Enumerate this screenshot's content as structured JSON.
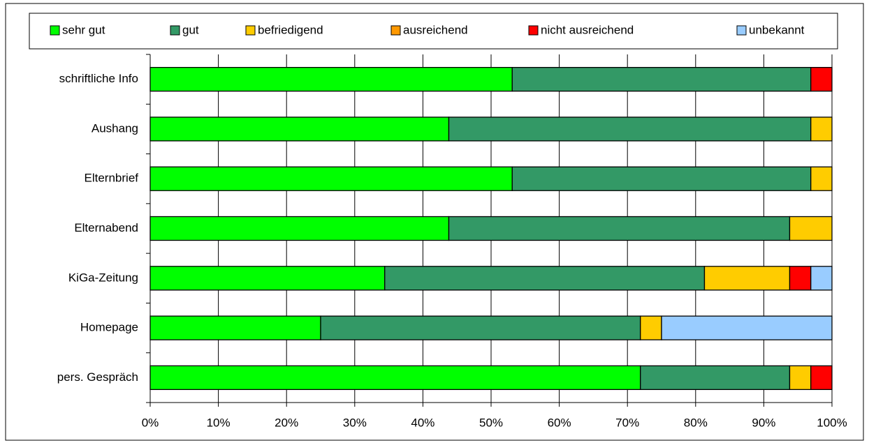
{
  "chart_data": {
    "type": "stacked_barh",
    "categories": [
      "schriftliche Info",
      "Aushang",
      "Elternbrief",
      "Elternabend",
      "KiGa-Zeitung",
      "Homepage",
      "pers. Gespräch"
    ],
    "series": [
      {
        "name": "sehr gut",
        "color": "#00ff00",
        "values": [
          53.1,
          43.8,
          53.1,
          43.8,
          34.4,
          25.0,
          71.9
        ]
      },
      {
        "name": "gut",
        "color": "#339966",
        "values": [
          43.8,
          53.1,
          43.8,
          50.0,
          46.9,
          46.9,
          21.9
        ]
      },
      {
        "name": "befriedigend",
        "color": "#ffcc00",
        "values": [
          0,
          3.1,
          3.1,
          6.2,
          12.5,
          3.1,
          3.1
        ]
      },
      {
        "name": "ausreichend",
        "color": "#ff9900",
        "values": [
          0,
          0,
          0,
          0,
          0,
          0,
          0
        ]
      },
      {
        "name": "nicht ausreichend",
        "color": "#ff0000",
        "values": [
          3.1,
          0,
          0,
          0,
          3.1,
          0,
          3.1
        ]
      },
      {
        "name": "unbekannt",
        "color": "#99ccff",
        "values": [
          0,
          0,
          0,
          0,
          3.1,
          25.0,
          0
        ]
      }
    ],
    "xlim": [
      0,
      100
    ],
    "xticks": [
      {
        "value": 0,
        "label": "0%"
      },
      {
        "value": 10,
        "label": "10%"
      },
      {
        "value": 20,
        "label": "20%"
      },
      {
        "value": 30,
        "label": "30%"
      },
      {
        "value": 40,
        "label": "40%"
      },
      {
        "value": 50,
        "label": "50%"
      },
      {
        "value": 60,
        "label": "60%"
      },
      {
        "value": 70,
        "label": "70%"
      },
      {
        "value": 80,
        "label": "80%"
      },
      {
        "value": 90,
        "label": "90%"
      },
      {
        "value": 100,
        "label": "100%"
      }
    ],
    "grid": true,
    "legend": "top"
  }
}
